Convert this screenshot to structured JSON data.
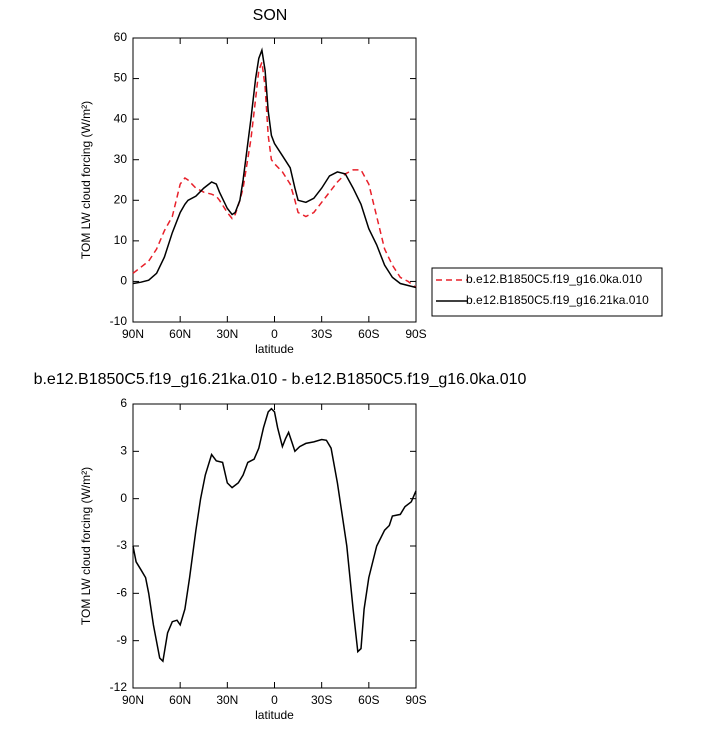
{
  "chart_data": [
    {
      "type": "line",
      "title": "SON",
      "xlabel": "latitude",
      "ylabel": "TOM LW cloud forcing (W/m²)",
      "x": [
        90,
        85,
        80,
        75,
        70,
        65,
        60,
        57,
        55,
        50,
        45,
        40,
        37,
        35,
        30,
        27,
        25,
        22,
        20,
        15,
        12,
        10,
        8,
        6,
        4,
        2,
        0,
        -5,
        -10,
        -13,
        -15,
        -20,
        -25,
        -30,
        -35,
        -40,
        -45,
        -50,
        -55,
        -60,
        -65,
        -70,
        -75,
        -80,
        -85,
        -90
      ],
      "series": [
        {
          "name": "b.e12.B1850C5.f19_g16.0ka.010",
          "color": "#e8202a",
          "linestyle": "dashed",
          "values": [
            2,
            3.5,
            5,
            8,
            12.5,
            16,
            24,
            25.5,
            25,
            23,
            22,
            21.5,
            21,
            20,
            17,
            15.5,
            16.5,
            20,
            23,
            35,
            45,
            52,
            54,
            48,
            36,
            30,
            29,
            27,
            24,
            20,
            17,
            16,
            17,
            19.5,
            22,
            24.5,
            26.5,
            27.5,
            27.5,
            24,
            16,
            8,
            4,
            1,
            0,
            -1.5
          ]
        },
        {
          "name": "b.e12.B1850C5.f19_g16.21ka.010",
          "color": "#000000",
          "linestyle": "solid",
          "values": [
            -0.5,
            -0.2,
            0.3,
            2,
            6,
            12,
            17,
            19,
            20,
            21,
            23,
            24.5,
            24,
            22,
            18,
            16.5,
            17,
            20,
            25,
            40,
            50,
            55,
            57,
            52,
            42,
            36,
            34,
            31,
            28,
            23,
            20,
            19.5,
            20.5,
            23,
            26,
            27,
            26.5,
            23,
            19,
            13,
            9,
            4,
            1,
            -0.5,
            -1,
            -1.5
          ]
        }
      ],
      "xlim": [
        90,
        -90
      ],
      "ylim": [
        -10,
        60
      ],
      "xticks": [
        {
          "value": 90,
          "label": "90N"
        },
        {
          "value": 60,
          "label": "60N"
        },
        {
          "value": 30,
          "label": "30N"
        },
        0,
        {
          "value": -30,
          "label": "30S"
        },
        {
          "value": -60,
          "label": "60S"
        },
        {
          "value": -90,
          "label": "90S"
        }
      ],
      "yticks": [
        -10,
        0,
        10,
        20,
        30,
        40,
        50,
        60
      ],
      "legend": "right"
    },
    {
      "type": "line",
      "title": "b.e12.B1850C5.f19_g16.21ka.010 - b.e12.B1850C5.f19_g16.0ka.010",
      "xlabel": "latitude",
      "ylabel": "TOM LW cloud forcing (W/m²)",
      "x": [
        90,
        88,
        85,
        82,
        80,
        77,
        73,
        71,
        68,
        65,
        62,
        60,
        57,
        54,
        50,
        47,
        44,
        40,
        37,
        33,
        30,
        27,
        23,
        20,
        17,
        13,
        10,
        7,
        4,
        2,
        0,
        -2,
        -5,
        -7,
        -9,
        -11,
        -13,
        -16,
        -20,
        -25,
        -30,
        -33,
        -36,
        -40,
        -43,
        -46,
        -50,
        -53,
        -55,
        -57,
        -60,
        -65,
        -70,
        -73,
        -75,
        -80,
        -83,
        -87,
        -90
      ],
      "series": [
        {
          "color": "#000000",
          "linestyle": "solid",
          "values": [
            -3,
            -4,
            -4.5,
            -5,
            -6,
            -8,
            -10.1,
            -10.3,
            -8.5,
            -7.8,
            -7.7,
            -8,
            -7,
            -5,
            -2,
            0,
            1.5,
            2.8,
            2.4,
            2.3,
            1,
            0.7,
            1,
            1.5,
            2.3,
            2.5,
            3.2,
            4.5,
            5.5,
            5.7,
            5.5,
            4.5,
            3.3,
            3.8,
            4.2,
            3.6,
            3,
            3.3,
            3.5,
            3.6,
            3.75,
            3.7,
            3.2,
            1,
            -1,
            -3,
            -7,
            -9.7,
            -9.5,
            -7,
            -5,
            -3,
            -2,
            -1.7,
            -1.1,
            -1,
            -0.5,
            -0.2,
            0.5
          ]
        }
      ],
      "xlim": [
        90,
        -90
      ],
      "ylim": [
        -12,
        6
      ],
      "xticks": [
        {
          "value": 90,
          "label": "90N"
        },
        {
          "value": 60,
          "label": "60N"
        },
        {
          "value": 30,
          "label": "30N"
        },
        0,
        {
          "value": -30,
          "label": "30S"
        },
        {
          "value": -60,
          "label": "60S"
        },
        {
          "value": -90,
          "label": "90S"
        }
      ],
      "yticks": [
        -12,
        -9,
        -6,
        -3,
        0,
        3,
        6
      ]
    }
  ]
}
